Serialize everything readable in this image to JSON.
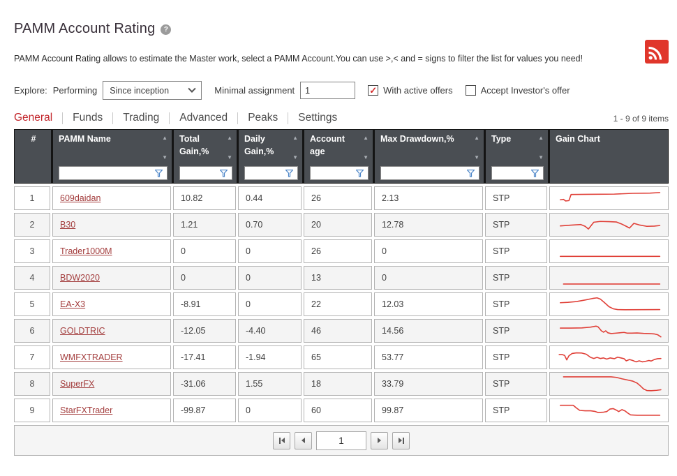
{
  "page": {
    "title": "PAMM Account Rating",
    "help_glyph": "?",
    "description": "PAMM Account Rating allows to estimate the Master work, select a PAMM Account.You can use >,< and = signs to filter the list for values you need!"
  },
  "filters": {
    "explore_label": "Explore:",
    "mode_label": "Performing",
    "period_value": "Since inception",
    "minimal_assignment_label": "Minimal assignment",
    "minimal_assignment_value": "1",
    "checkboxes": [
      {
        "label": "With active offers",
        "checked": true
      },
      {
        "label": "Accept Investor's offer",
        "checked": false
      }
    ]
  },
  "tabs": [
    {
      "label": "General",
      "active": true
    },
    {
      "label": "Funds",
      "active": false
    },
    {
      "label": "Trading",
      "active": false
    },
    {
      "label": "Advanced",
      "active": false
    },
    {
      "label": "Peaks",
      "active": false
    },
    {
      "label": "Settings",
      "active": false
    }
  ],
  "items_count": "1 - 9 of 9 items",
  "table": {
    "columns": [
      {
        "key": "num",
        "label": "#",
        "width": 52,
        "sortable": false,
        "filterable": false,
        "align": "center"
      },
      {
        "key": "name",
        "label": "PAMM Name",
        "width": 170,
        "sortable": true,
        "filterable": true
      },
      {
        "key": "total_gain",
        "label": "Total Gain,%",
        "width": 90,
        "sortable": true,
        "filterable": true
      },
      {
        "key": "daily_gain",
        "label": "Daily Gain,%",
        "width": 91,
        "sortable": true,
        "filterable": true
      },
      {
        "key": "age",
        "label": "Account age",
        "width": 98,
        "sortable": true,
        "filterable": true
      },
      {
        "key": "drawdown",
        "label": "Max Drawdown,%",
        "width": 156,
        "sortable": true,
        "filterable": true
      },
      {
        "key": "type",
        "label": "Type",
        "width": 89,
        "sortable": true,
        "filterable": true
      },
      {
        "key": "chart",
        "label": "Gain Chart",
        "width": 164,
        "sortable": false,
        "filterable": false,
        "last": true
      }
    ],
    "rows": [
      {
        "num": "1",
        "name": "609daidan",
        "total_gain": "10.82",
        "daily_gain": "0.44",
        "age": "26",
        "drawdown": "2.13",
        "type": "STP",
        "spark": [
          [
            5,
            58
          ],
          [
            8,
            56
          ],
          [
            10,
            64
          ],
          [
            13,
            62
          ],
          [
            15,
            31
          ],
          [
            30,
            30
          ],
          [
            55,
            29
          ],
          [
            72,
            25
          ],
          [
            88,
            24
          ],
          [
            97,
            21
          ]
        ]
      },
      {
        "num": "2",
        "name": "B30",
        "total_gain": "1.21",
        "daily_gain": "0.70",
        "age": "20",
        "drawdown": "12.78",
        "type": "STP",
        "spark": [
          [
            5,
            56
          ],
          [
            15,
            52
          ],
          [
            24,
            49
          ],
          [
            28,
            58
          ],
          [
            31,
            72
          ],
          [
            36,
            37
          ],
          [
            42,
            33
          ],
          [
            50,
            34
          ],
          [
            57,
            36
          ],
          [
            62,
            47
          ],
          [
            66,
            58
          ],
          [
            69,
            67
          ],
          [
            73,
            43
          ],
          [
            78,
            51
          ],
          [
            85,
            58
          ],
          [
            92,
            57
          ],
          [
            97,
            54
          ]
        ]
      },
      {
        "num": "3",
        "name": "Trader1000M",
        "total_gain": "0",
        "daily_gain": "0",
        "age": "26",
        "drawdown": "0",
        "type": "STP",
        "spark": [
          [
            5,
            76
          ],
          [
            97,
            76
          ]
        ]
      },
      {
        "num": "4",
        "name": "BDW2020",
        "total_gain": "0",
        "daily_gain": "0",
        "age": "13",
        "drawdown": "0",
        "type": "STP",
        "spark": [
          [
            8,
            82
          ],
          [
            97,
            82
          ]
        ]
      },
      {
        "num": "5",
        "name": "EA-X3",
        "total_gain": "-8.91",
        "daily_gain": "0",
        "age": "22",
        "drawdown": "12.03",
        "type": "STP",
        "spark": [
          [
            5,
            42
          ],
          [
            12,
            40
          ],
          [
            20,
            36
          ],
          [
            28,
            28
          ],
          [
            35,
            20
          ],
          [
            39,
            17
          ],
          [
            42,
            23
          ],
          [
            46,
            42
          ],
          [
            50,
            62
          ],
          [
            54,
            73
          ],
          [
            58,
            77
          ],
          [
            65,
            78
          ],
          [
            97,
            77
          ]
        ]
      },
      {
        "num": "6",
        "name": "GOLDTRIC",
        "total_gain": "-12.05",
        "daily_gain": "-4.40",
        "age": "46",
        "drawdown": "14.56",
        "type": "STP",
        "spark": [
          [
            5,
            36
          ],
          [
            15,
            36
          ],
          [
            25,
            35
          ],
          [
            33,
            31
          ],
          [
            38,
            26
          ],
          [
            40,
            30
          ],
          [
            43,
            50
          ],
          [
            45,
            57
          ],
          [
            47,
            50
          ],
          [
            49,
            60
          ],
          [
            52,
            64
          ],
          [
            56,
            62
          ],
          [
            60,
            60
          ],
          [
            64,
            58
          ],
          [
            67,
            62
          ],
          [
            71,
            62
          ],
          [
            76,
            61
          ],
          [
            82,
            63
          ],
          [
            87,
            64
          ],
          [
            92,
            66
          ],
          [
            95,
            70
          ],
          [
            98,
            81
          ]
        ]
      },
      {
        "num": "7",
        "name": "WMFXTRADER",
        "total_gain": "-17.41",
        "daily_gain": "-1.94",
        "age": "65",
        "drawdown": "53.77",
        "type": "STP",
        "spark": [
          [
            4,
            36
          ],
          [
            7,
            36
          ],
          [
            9,
            40
          ],
          [
            11,
            63
          ],
          [
            13,
            42
          ],
          [
            16,
            30
          ],
          [
            20,
            27
          ],
          [
            25,
            28
          ],
          [
            29,
            34
          ],
          [
            33,
            50
          ],
          [
            36,
            56
          ],
          [
            39,
            50
          ],
          [
            42,
            56
          ],
          [
            45,
            53
          ],
          [
            48,
            59
          ],
          [
            51,
            53
          ],
          [
            55,
            57
          ],
          [
            58,
            49
          ],
          [
            61,
            53
          ],
          [
            64,
            57
          ],
          [
            66,
            68
          ],
          [
            69,
            61
          ],
          [
            72,
            66
          ],
          [
            75,
            73
          ],
          [
            78,
            68
          ],
          [
            81,
            73
          ],
          [
            84,
            70
          ],
          [
            87,
            66
          ],
          [
            89,
            69
          ],
          [
            92,
            61
          ],
          [
            95,
            57
          ],
          [
            98,
            56
          ]
        ]
      },
      {
        "num": "8",
        "name": "SuperFX",
        "total_gain": "-31.06",
        "daily_gain": "1.55",
        "age": "18",
        "drawdown": "33.79",
        "type": "STP",
        "spark": [
          [
            8,
            14
          ],
          [
            52,
            14
          ],
          [
            57,
            17
          ],
          [
            62,
            24
          ],
          [
            67,
            30
          ],
          [
            72,
            36
          ],
          [
            76,
            46
          ],
          [
            79,
            60
          ],
          [
            82,
            76
          ],
          [
            85,
            84
          ],
          [
            89,
            85
          ],
          [
            94,
            83
          ],
          [
            98,
            80
          ]
        ]
      },
      {
        "num": "9",
        "name": "StarFXTrader",
        "total_gain": "-99.87",
        "daily_gain": "0",
        "age": "60",
        "drawdown": "99.87",
        "type": "STP",
        "spark": [
          [
            5,
            24
          ],
          [
            17,
            24
          ],
          [
            20,
            38
          ],
          [
            23,
            50
          ],
          [
            28,
            52
          ],
          [
            33,
            52
          ],
          [
            37,
            55
          ],
          [
            40,
            61
          ],
          [
            45,
            59
          ],
          [
            48,
            56
          ],
          [
            51,
            43
          ],
          [
            54,
            41
          ],
          [
            57,
            49
          ],
          [
            59,
            56
          ],
          [
            62,
            46
          ],
          [
            65,
            53
          ],
          [
            67,
            62
          ],
          [
            70,
            73
          ],
          [
            76,
            75
          ],
          [
            97,
            75
          ]
        ]
      }
    ]
  },
  "pager": {
    "page_value": "1",
    "buttons": [
      "first",
      "prev",
      "next",
      "last"
    ]
  },
  "colors": {
    "accent_red": "#c2242a",
    "link_red": "#a33d3d",
    "spark_red": "#e04038",
    "rss_red": "#e0362b",
    "header_bg": "#4a4e53",
    "funnel_blue": "#4d86c8"
  }
}
